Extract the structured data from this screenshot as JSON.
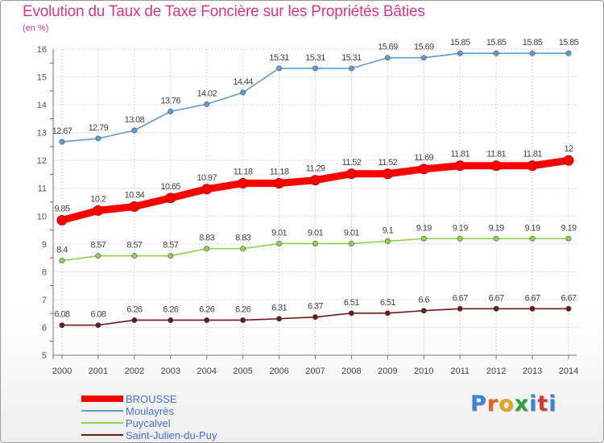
{
  "chart_data": {
    "type": "line",
    "title": "Evolution du Taux de Taxe Foncière sur les Propriétés Bâties",
    "ylabel": "(en %)",
    "xlabel": "",
    "categories": [
      "2000",
      "2001",
      "2002",
      "2003",
      "2004",
      "2005",
      "2006",
      "2007",
      "2008",
      "2009",
      "2010",
      "2011",
      "2012",
      "2013",
      "2014"
    ],
    "ylim": [
      5,
      16
    ],
    "yticks": [
      "5",
      "6",
      "7",
      "8",
      "9",
      "10",
      "11",
      "12",
      "13",
      "14",
      "15",
      "16"
    ],
    "grid": true,
    "legend_position": "bottom-left",
    "series": [
      {
        "name": "BROUSSE",
        "color": "#ff0000",
        "emphasis": "thick",
        "values": [
          9.85,
          10.2,
          10.34,
          10.65,
          10.97,
          11.18,
          11.18,
          11.29,
          11.52,
          11.52,
          11.69,
          11.81,
          11.81,
          11.81,
          12
        ],
        "labels": [
          "9.85",
          "10.2",
          "10.34",
          "10.65",
          "10.97",
          "11.18",
          "11.18",
          "11.29",
          "11.52",
          "11.52",
          "11.69",
          "11.81",
          "11.81",
          "11.81",
          "12"
        ]
      },
      {
        "name": "Moulayrès",
        "color": "#5f9ccd",
        "emphasis": "thin",
        "values": [
          12.67,
          12.79,
          13.08,
          13.76,
          14.02,
          14.44,
          15.31,
          15.31,
          15.31,
          15.69,
          15.69,
          15.85,
          15.85,
          15.85,
          15.85
        ],
        "labels": [
          "12.67",
          "12.79",
          "13.08",
          "13.76",
          "14.02",
          "14.44",
          "15.31",
          "15.31",
          "15.31",
          "15.69",
          "15.69",
          "15.85",
          "15.85",
          "15.85",
          "15.85"
        ]
      },
      {
        "name": "Puycalvel",
        "color": "#8fd14f",
        "emphasis": "thin",
        "values": [
          8.4,
          8.57,
          8.57,
          8.57,
          8.83,
          8.83,
          9.01,
          9.01,
          9.01,
          9.1,
          9.19,
          9.19,
          9.19,
          9.19,
          9.19
        ],
        "labels": [
          "8.4",
          "8.57",
          "8.57",
          "8.57",
          "8.83",
          "8.83",
          "9.01",
          "9.01",
          "9.01",
          "9.1",
          "9.19",
          "9.19",
          "9.19",
          "9.19",
          "9.19"
        ]
      },
      {
        "name": "Saint-Julien-du-Puy",
        "color": "#6b1a1a",
        "emphasis": "thin",
        "values": [
          6.08,
          6.08,
          6.26,
          6.26,
          6.26,
          6.26,
          6.31,
          6.37,
          6.51,
          6.51,
          6.6,
          6.67,
          6.67,
          6.67,
          6.67
        ],
        "labels": [
          "6.08",
          "6.08",
          "6.26",
          "6.26",
          "6.26",
          "6.26",
          "6.31",
          "6.37",
          "6.51",
          "6.51",
          "6.6",
          "6.67",
          "6.67",
          "6.67",
          "6.67"
        ]
      }
    ]
  },
  "logo": {
    "letters": [
      "P",
      "r",
      "o",
      "x",
      "i",
      "t",
      "i"
    ],
    "colors": [
      "#3a86d6",
      "#e8641b",
      "#e8a21b",
      "#2d9e3a",
      "#3a86d6",
      "#d83a3a",
      "#3a86d6"
    ]
  }
}
